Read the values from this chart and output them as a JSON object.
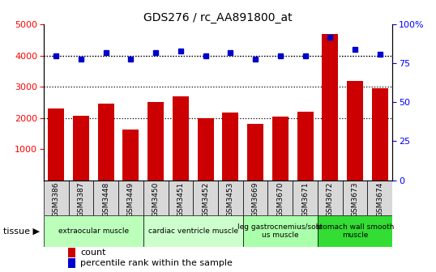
{
  "title": "GDS276 / rc_AA891800_at",
  "samples": [
    "GSM3386",
    "GSM3387",
    "GSM3448",
    "GSM3449",
    "GSM3450",
    "GSM3451",
    "GSM3452",
    "GSM3453",
    "GSM3669",
    "GSM3670",
    "GSM3671",
    "GSM3672",
    "GSM3673",
    "GSM3674"
  ],
  "counts": [
    2300,
    2060,
    2470,
    1620,
    2500,
    2700,
    1990,
    2170,
    1800,
    2040,
    2190,
    4700,
    3180,
    2950
  ],
  "percentile": [
    80,
    78,
    82,
    78,
    82,
    83,
    80,
    82,
    78,
    80,
    80,
    92,
    84,
    81
  ],
  "ylim_left": [
    0,
    5000
  ],
  "ylim_right": [
    0,
    100
  ],
  "yticks_left": [
    1000,
    2000,
    3000,
    4000,
    5000
  ],
  "yticks_right": [
    0,
    25,
    50,
    75,
    100
  ],
  "bar_color": "#cc0000",
  "dot_color": "#0000cc",
  "plot_bg_color": "#ffffff",
  "xticklabel_bg_color": "#d8d8d8",
  "tissue_groups": [
    {
      "label": "extraocular muscle",
      "start": 0,
      "end": 4,
      "color": "#bbffbb"
    },
    {
      "label": "cardiac ventricle muscle",
      "start": 4,
      "end": 8,
      "color": "#ccffcc"
    },
    {
      "label": "leg gastrocnemius/sole\nus muscle",
      "start": 8,
      "end": 11,
      "color": "#aaffaa"
    },
    {
      "label": "stomach wall smooth\nmuscle",
      "start": 11,
      "end": 14,
      "color": "#33dd33"
    }
  ],
  "legend_count_color": "#cc0000",
  "legend_dot_color": "#0000cc",
  "dotted_lines": [
    2000,
    3000,
    4000
  ],
  "fig_bg_color": "#ffffff"
}
